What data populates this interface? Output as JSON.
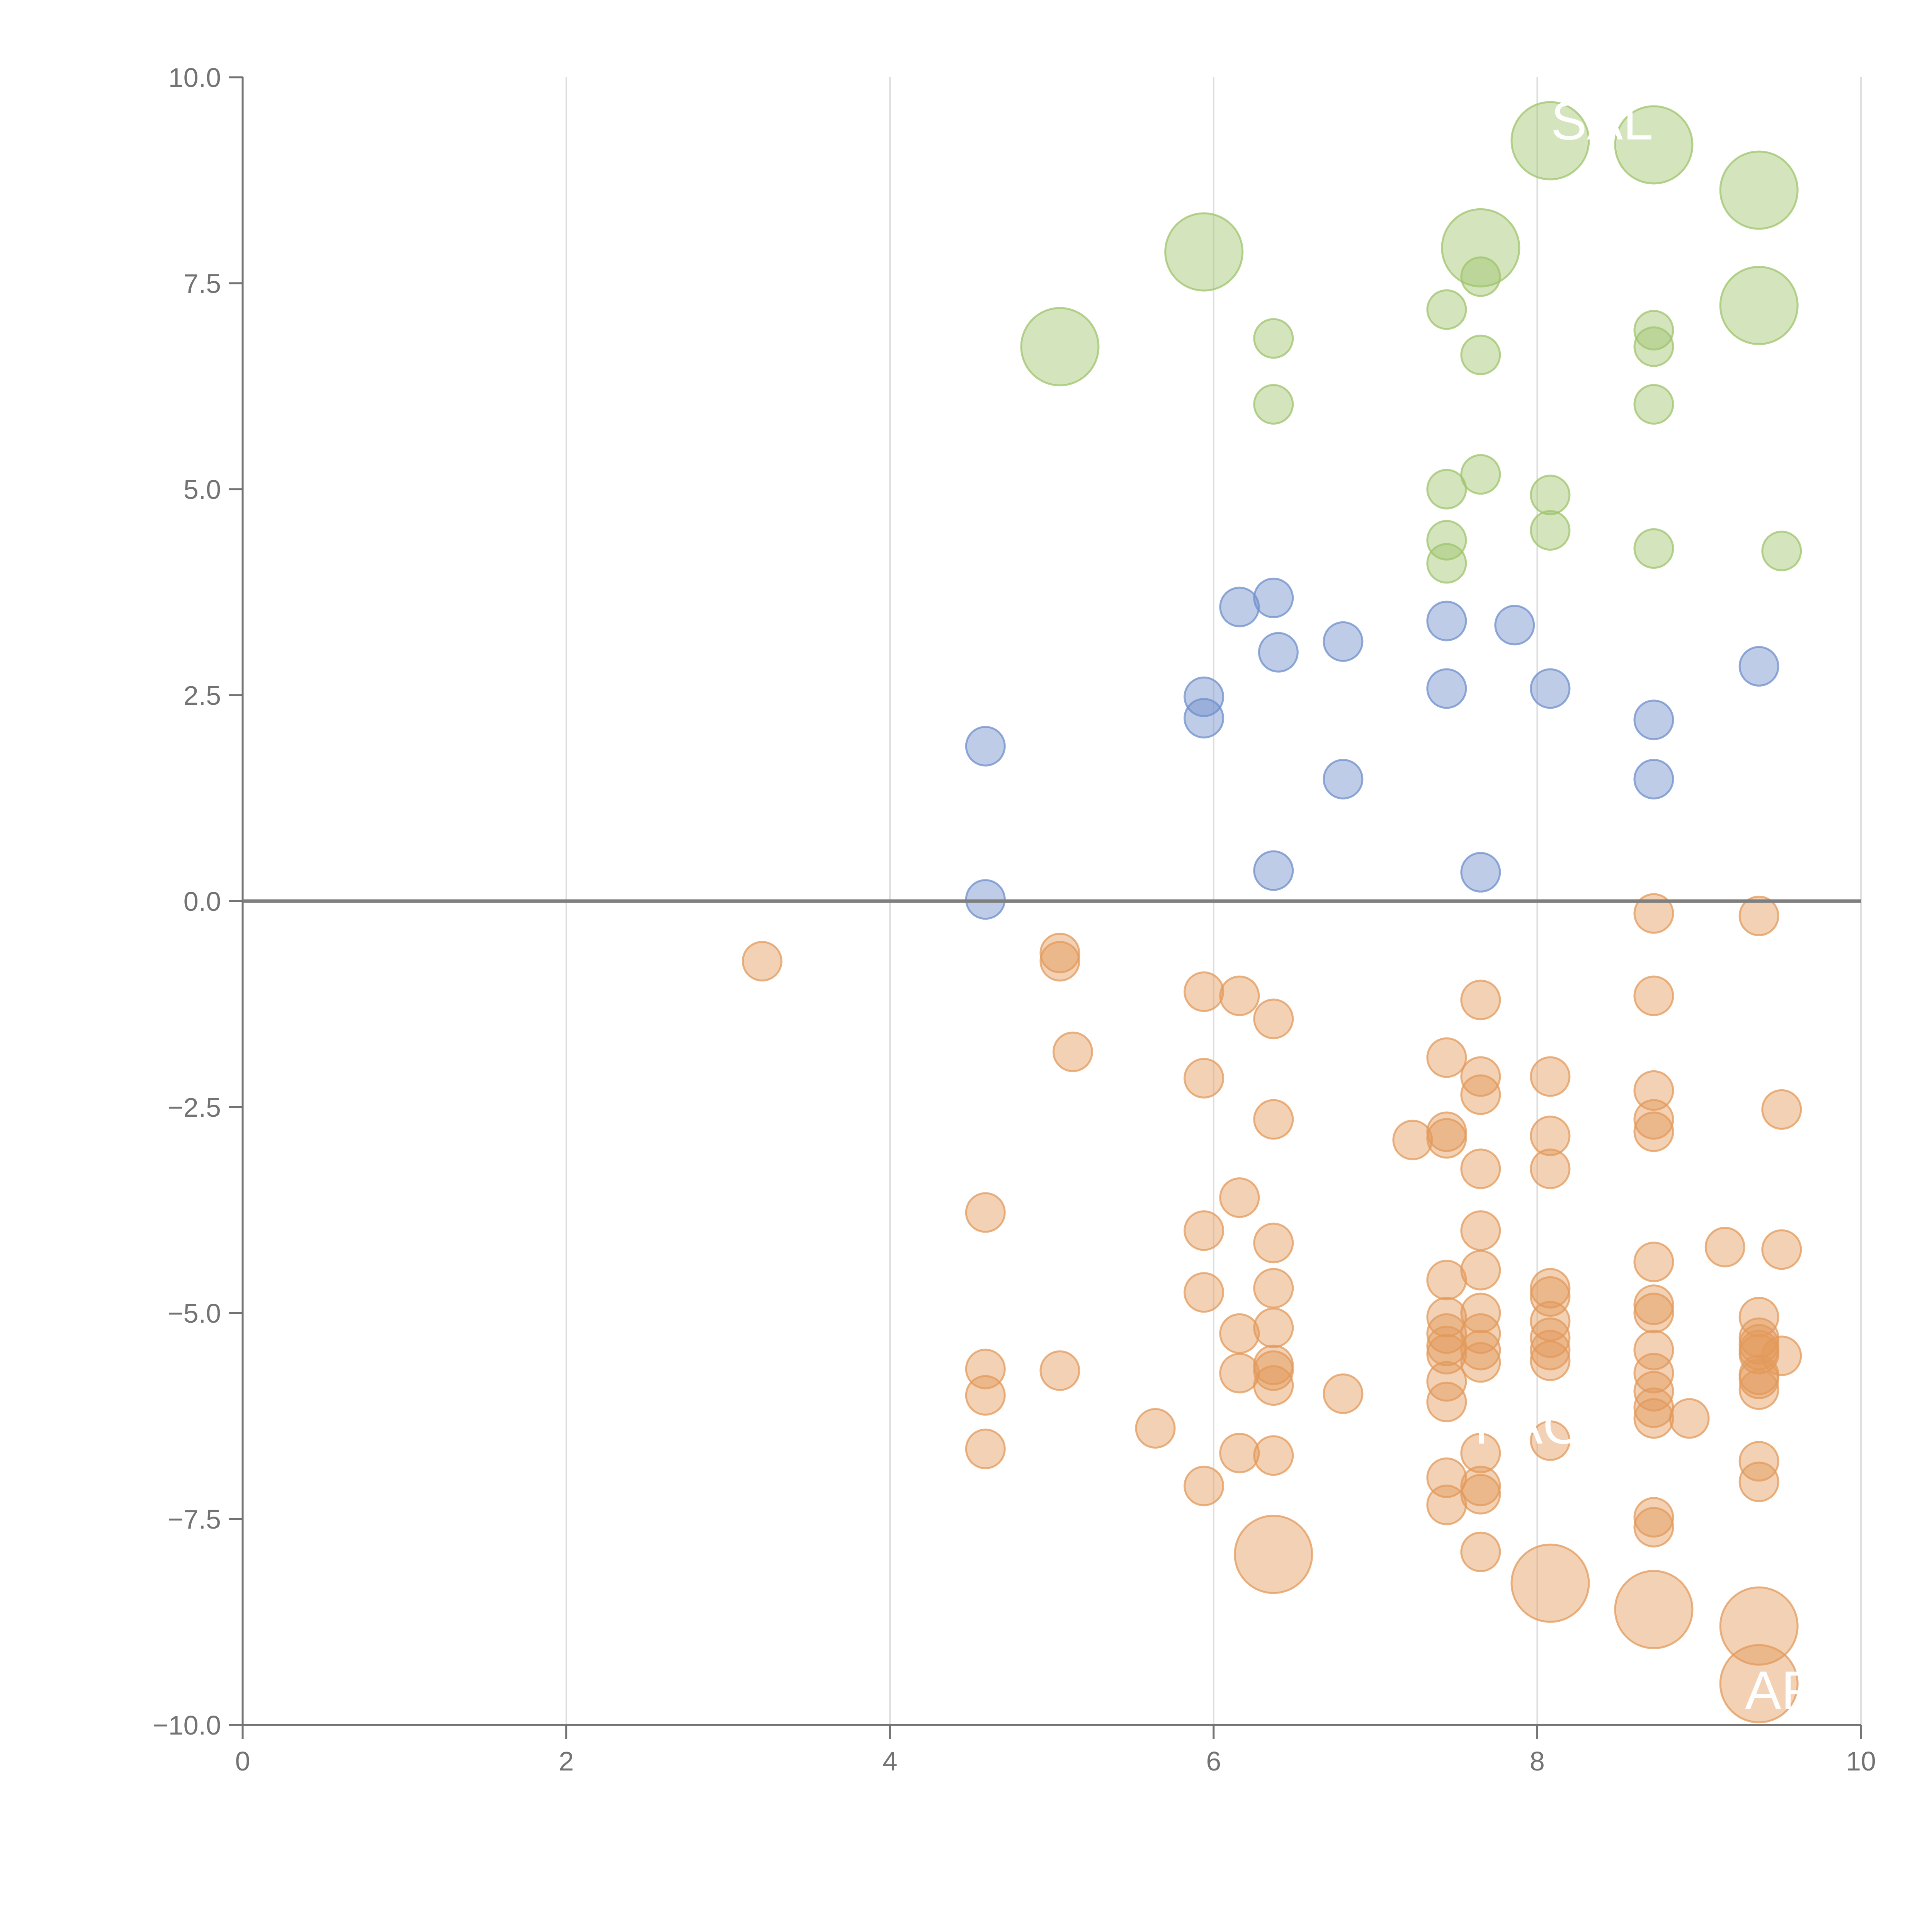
{
  "chart_data": {
    "type": "scatter",
    "title": "",
    "xlabel": "",
    "ylabel": "",
    "xlim": [
      0,
      10
    ],
    "ylim": [
      -10,
      10
    ],
    "x_ticks": [
      "0",
      "2",
      "4",
      "6",
      "8",
      "10"
    ],
    "y_ticks": [
      "10.0",
      "7.5",
      "5.0",
      "2.5",
      "0.0",
      "−2.5",
      "−5.0",
      "−7.5",
      "−10.0"
    ],
    "grid": "vertical",
    "zero_line": true,
    "colors": {
      "green": "#9fc46c",
      "blue": "#6f8fcb",
      "orange": "#e39a5b",
      "axis": "#737373",
      "grid": "#dedede",
      "zero": "#7f7f7f"
    },
    "series": [
      {
        "color": "#9fc46c",
        "points": [
          {
            "x": 8.08,
            "y": 9.23,
            "big": true
          },
          {
            "x": 8.72,
            "y": 9.18,
            "big": true
          },
          {
            "x": 9.37,
            "y": 8.63,
            "big": true
          },
          {
            "x": 5.94,
            "y": 7.88,
            "big": true
          },
          {
            "x": 7.65,
            "y": 7.93,
            "big": true
          },
          {
            "x": 9.37,
            "y": 7.23,
            "big": true
          },
          {
            "x": 5.05,
            "y": 6.73,
            "big": true
          },
          {
            "x": 7.65,
            "y": 7.58
          },
          {
            "x": 7.44,
            "y": 7.18
          },
          {
            "x": 6.37,
            "y": 6.83
          },
          {
            "x": 8.72,
            "y": 6.93
          },
          {
            "x": 8.72,
            "y": 6.73
          },
          {
            "x": 7.65,
            "y": 6.63
          },
          {
            "x": 6.37,
            "y": 6.03
          },
          {
            "x": 8.72,
            "y": 6.03
          },
          {
            "x": 7.65,
            "y": 5.18
          },
          {
            "x": 7.44,
            "y": 5.0
          },
          {
            "x": 8.08,
            "y": 4.93
          },
          {
            "x": 8.08,
            "y": 4.5
          },
          {
            "x": 7.44,
            "y": 4.38
          },
          {
            "x": 8.72,
            "y": 4.28
          },
          {
            "x": 9.51,
            "y": 4.25
          },
          {
            "x": 7.44,
            "y": 4.1
          }
        ]
      },
      {
        "color": "#6f8fcb",
        "points": [
          {
            "x": 6.37,
            "y": 3.68
          },
          {
            "x": 6.16,
            "y": 3.57
          },
          {
            "x": 7.44,
            "y": 3.4
          },
          {
            "x": 7.86,
            "y": 3.35
          },
          {
            "x": 6.8,
            "y": 3.15
          },
          {
            "x": 6.4,
            "y": 3.02
          },
          {
            "x": 9.37,
            "y": 2.85
          },
          {
            "x": 8.08,
            "y": 2.58
          },
          {
            "x": 7.44,
            "y": 2.58
          },
          {
            "x": 5.94,
            "y": 2.48
          },
          {
            "x": 5.94,
            "y": 2.22
          },
          {
            "x": 8.72,
            "y": 2.2
          },
          {
            "x": 4.59,
            "y": 1.88
          },
          {
            "x": 6.8,
            "y": 1.48
          },
          {
            "x": 8.72,
            "y": 1.48
          },
          {
            "x": 6.37,
            "y": 0.37
          },
          {
            "x": 7.65,
            "y": 0.35
          },
          {
            "x": 4.59,
            "y": 0.02
          }
        ]
      },
      {
        "color": "#e39a5b",
        "points": [
          {
            "x": 8.72,
            "y": -0.15
          },
          {
            "x": 9.37,
            "y": -0.18
          },
          {
            "x": 3.21,
            "y": -0.73
          },
          {
            "x": 5.05,
            "y": -0.63
          },
          {
            "x": 5.05,
            "y": -0.73
          },
          {
            "x": 5.94,
            "y": -1.1
          },
          {
            "x": 6.16,
            "y": -1.15
          },
          {
            "x": 7.65,
            "y": -1.2
          },
          {
            "x": 8.72,
            "y": -1.15
          },
          {
            "x": 6.37,
            "y": -1.43
          },
          {
            "x": 5.13,
            "y": -1.83
          },
          {
            "x": 7.44,
            "y": -1.9
          },
          {
            "x": 5.94,
            "y": -2.15
          },
          {
            "x": 7.65,
            "y": -2.13
          },
          {
            "x": 8.08,
            "y": -2.13
          },
          {
            "x": 7.65,
            "y": -2.35
          },
          {
            "x": 8.72,
            "y": -2.3
          },
          {
            "x": 9.51,
            "y": -2.53
          },
          {
            "x": 6.37,
            "y": -2.65
          },
          {
            "x": 8.72,
            "y": -2.65
          },
          {
            "x": 8.72,
            "y": -2.8
          },
          {
            "x": 7.44,
            "y": -2.8
          },
          {
            "x": 7.44,
            "y": -2.88
          },
          {
            "x": 8.08,
            "y": -2.85
          },
          {
            "x": 7.23,
            "y": -2.9
          },
          {
            "x": 7.65,
            "y": -3.25
          },
          {
            "x": 8.08,
            "y": -3.25
          },
          {
            "x": 6.16,
            "y": -3.6
          },
          {
            "x": 4.59,
            "y": -3.78
          },
          {
            "x": 5.94,
            "y": -4.0
          },
          {
            "x": 7.65,
            "y": -4.0
          },
          {
            "x": 6.37,
            "y": -4.15
          },
          {
            "x": 9.16,
            "y": -4.2
          },
          {
            "x": 9.51,
            "y": -4.23
          },
          {
            "x": 8.72,
            "y": -4.38
          },
          {
            "x": 7.65,
            "y": -4.48
          },
          {
            "x": 7.44,
            "y": -4.6
          },
          {
            "x": 6.37,
            "y": -4.7
          },
          {
            "x": 5.94,
            "y": -4.75
          },
          {
            "x": 8.08,
            "y": -4.7
          },
          {
            "x": 8.08,
            "y": -4.8
          },
          {
            "x": 8.72,
            "y": -4.9
          },
          {
            "x": 8.72,
            "y": -5.0
          },
          {
            "x": 7.65,
            "y": -5.0
          },
          {
            "x": 7.44,
            "y": -5.05
          },
          {
            "x": 9.37,
            "y": -5.05
          },
          {
            "x": 8.08,
            "y": -5.1
          },
          {
            "x": 6.37,
            "y": -5.18
          },
          {
            "x": 6.16,
            "y": -5.25
          },
          {
            "x": 7.44,
            "y": -5.25
          },
          {
            "x": 7.65,
            "y": -5.25
          },
          {
            "x": 8.08,
            "y": -5.3
          },
          {
            "x": 9.37,
            "y": -5.3
          },
          {
            "x": 9.37,
            "y": -5.38
          },
          {
            "x": 7.44,
            "y": -5.4
          },
          {
            "x": 9.37,
            "y": -5.45
          },
          {
            "x": 8.72,
            "y": -5.45
          },
          {
            "x": 7.65,
            "y": -5.45
          },
          {
            "x": 8.08,
            "y": -5.45
          },
          {
            "x": 9.37,
            "y": -5.5
          },
          {
            "x": 7.44,
            "y": -5.5
          },
          {
            "x": 9.51,
            "y": -5.52
          },
          {
            "x": 8.08,
            "y": -5.58
          },
          {
            "x": 7.65,
            "y": -5.6
          },
          {
            "x": 6.37,
            "y": -5.63
          },
          {
            "x": 4.59,
            "y": -5.68
          },
          {
            "x": 5.05,
            "y": -5.7
          },
          {
            "x": 6.37,
            "y": -5.7
          },
          {
            "x": 6.16,
            "y": -5.73
          },
          {
            "x": 8.72,
            "y": -5.73
          },
          {
            "x": 9.37,
            "y": -5.75
          },
          {
            "x": 9.37,
            "y": -5.8
          },
          {
            "x": 7.44,
            "y": -5.83
          },
          {
            "x": 6.37,
            "y": -5.88
          },
          {
            "x": 9.37,
            "y": -5.93
          },
          {
            "x": 8.72,
            "y": -5.95
          },
          {
            "x": 6.8,
            "y": -5.98
          },
          {
            "x": 4.59,
            "y": -6.0
          },
          {
            "x": 7.44,
            "y": -6.08
          },
          {
            "x": 8.72,
            "y": -6.15
          },
          {
            "x": 8.72,
            "y": -6.28
          },
          {
            "x": 8.94,
            "y": -6.28
          },
          {
            "x": 5.64,
            "y": -6.4
          },
          {
            "x": 8.08,
            "y": -6.55
          },
          {
            "x": 4.59,
            "y": -6.65
          },
          {
            "x": 6.16,
            "y": -6.7
          },
          {
            "x": 7.65,
            "y": -6.7
          },
          {
            "x": 6.37,
            "y": -6.73
          },
          {
            "x": 9.37,
            "y": -6.8
          },
          {
            "x": 7.44,
            "y": -7.0
          },
          {
            "x": 9.37,
            "y": -7.05
          },
          {
            "x": 5.94,
            "y": -7.1
          },
          {
            "x": 7.65,
            "y": -7.1
          },
          {
            "x": 7.65,
            "y": -7.2
          },
          {
            "x": 7.44,
            "y": -7.33
          },
          {
            "x": 8.72,
            "y": -7.48
          },
          {
            "x": 8.72,
            "y": -7.6
          },
          {
            "x": 7.65,
            "y": -7.9
          },
          {
            "x": 6.37,
            "y": -7.93,
            "big": true
          },
          {
            "x": 8.08,
            "y": -8.28,
            "big": true
          },
          {
            "x": 8.72,
            "y": -8.6,
            "big": true
          },
          {
            "x": 9.37,
            "y": -8.8,
            "big": true
          },
          {
            "x": 9.37,
            "y": -9.5,
            "big": true
          }
        ]
      }
    ],
    "point_labels": [
      {
        "text": "SAL",
        "x": 8.4,
        "y": 9.48
      },
      {
        "text": "PAOI",
        "x": 8.0,
        "y": -6.35
      },
      {
        "text": "APL",
        "x": 9.6,
        "y": -9.57
      }
    ]
  }
}
